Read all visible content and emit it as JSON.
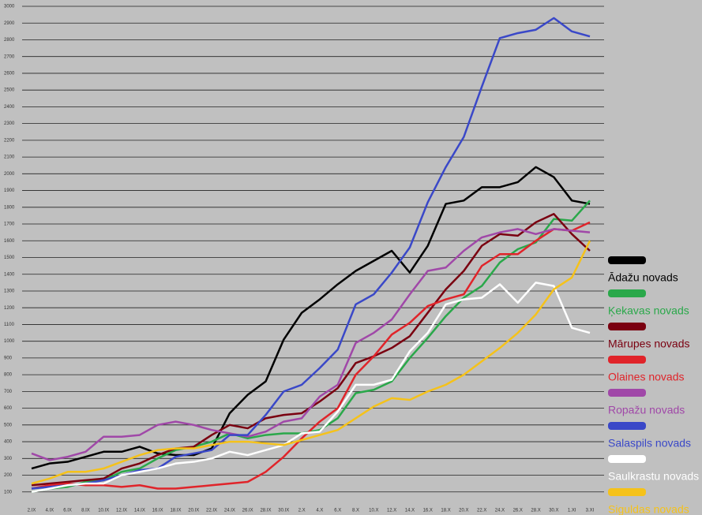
{
  "chart_data": {
    "type": "line",
    "x": [
      "2.IX",
      "4.IX",
      "6.IX",
      "8.IX",
      "10.IX",
      "12.IX",
      "14.IX",
      "16.IX",
      "18.IX",
      "20.IX",
      "22.IX",
      "24.IX",
      "26.IX",
      "28.IX",
      "30.IX",
      "2.X",
      "4.X",
      "6.X",
      "8.X",
      "10.X",
      "12.X",
      "14.X",
      "16.X",
      "18.X",
      "20.X",
      "22.X",
      "24.X",
      "26.X",
      "28.X",
      "30.X",
      "1.XI",
      "3.XI"
    ],
    "ylim": [
      0,
      3000
    ],
    "yticks": [
      100,
      200,
      300,
      400,
      500,
      600,
      700,
      800,
      900,
      1000,
      1100,
      1200,
      1300,
      1400,
      1500,
      1600,
      1700,
      1800,
      1900,
      2000,
      2100,
      2200,
      2300,
      2400,
      2500,
      2600,
      2700,
      2800,
      2900,
      3000
    ],
    "grid": true,
    "series": [
      {
        "name": "Ādažu novads",
        "color": "#000000",
        "values": [
          240,
          270,
          280,
          310,
          340,
          340,
          370,
          330,
          320,
          320,
          360,
          570,
          680,
          760,
          1010,
          1170,
          1250,
          1340,
          1420,
          1480,
          1540,
          1410,
          1570,
          1820,
          1840,
          1920,
          1920,
          1950,
          2040,
          1980,
          1840,
          1820
        ]
      },
      {
        "name": "Ķekavas novads",
        "color": "#2aa84a",
        "values": [
          100,
          120,
          130,
          160,
          170,
          220,
          240,
          300,
          350,
          370,
          400,
          450,
          420,
          440,
          450,
          450,
          470,
          540,
          690,
          710,
          760,
          900,
          1020,
          1150,
          1260,
          1330,
          1470,
          1550,
          1590,
          1730,
          1720,
          1840
        ]
      },
      {
        "name": "Mārupes novads",
        "color": "#7a0010",
        "values": [
          140,
          150,
          160,
          170,
          180,
          240,
          270,
          320,
          360,
          370,
          440,
          500,
          480,
          540,
          560,
          570,
          640,
          720,
          870,
          910,
          960,
          1030,
          1170,
          1310,
          1420,
          1570,
          1640,
          1630,
          1710,
          1760,
          1640,
          1540
        ]
      },
      {
        "name": "Olaines novads",
        "color": "#e0242a",
        "values": [
          120,
          140,
          150,
          140,
          140,
          130,
          140,
          120,
          120,
          130,
          140,
          150,
          160,
          220,
          310,
          420,
          520,
          600,
          800,
          910,
          1040,
          1110,
          1210,
          1250,
          1280,
          1450,
          1520,
          1520,
          1600,
          1670,
          1660,
          1710
        ]
      },
      {
        "name": "Ropažu novads",
        "color": "#a048a8",
        "values": [
          330,
          290,
          310,
          340,
          430,
          430,
          440,
          500,
          520,
          500,
          470,
          450,
          430,
          460,
          520,
          540,
          670,
          740,
          990,
          1050,
          1130,
          1280,
          1420,
          1440,
          1540,
          1620,
          1650,
          1670,
          1640,
          1670,
          1660,
          1650
        ]
      },
      {
        "name": "Salaspils novads",
        "color": "#3a48c8",
        "values": [
          120,
          130,
          140,
          150,
          170,
          200,
          230,
          240,
          310,
          330,
          350,
          440,
          440,
          560,
          700,
          740,
          840,
          950,
          1220,
          1280,
          1410,
          1560,
          1830,
          2040,
          2220,
          2520,
          2810,
          2840,
          2860,
          2930,
          2850,
          2820
        ]
      },
      {
        "name": "Saulkrastu novads",
        "color": "#ffffff",
        "values": [
          100,
          120,
          140,
          150,
          150,
          200,
          220,
          240,
          270,
          280,
          300,
          340,
          320,
          350,
          380,
          450,
          460,
          580,
          740,
          740,
          770,
          940,
          1050,
          1220,
          1250,
          1260,
          1340,
          1230,
          1350,
          1330,
          1080,
          1050
        ]
      },
      {
        "name": "Siguldas novads",
        "color": "#f5c21a",
        "values": [
          150,
          180,
          220,
          220,
          240,
          280,
          320,
          350,
          360,
          360,
          380,
          400,
          400,
          390,
          380,
          410,
          440,
          470,
          540,
          610,
          660,
          650,
          700,
          740,
          800,
          880,
          960,
          1050,
          1160,
          1310,
          1380,
          1600
        ]
      }
    ]
  }
}
